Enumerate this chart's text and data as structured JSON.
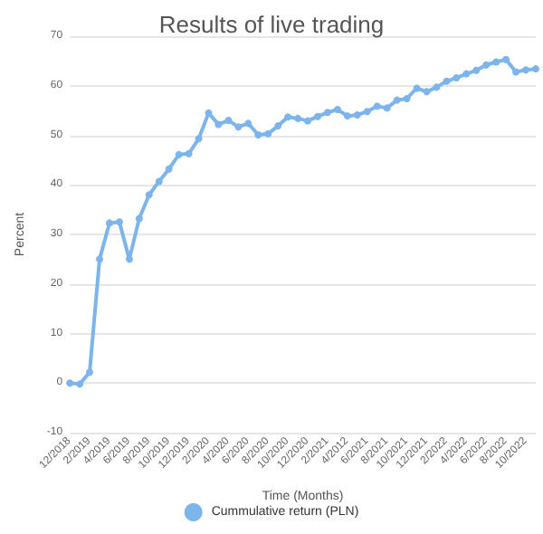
{
  "chart_data": {
    "type": "line",
    "title": "Results of live trading",
    "xlabel": "Time (Months)",
    "ylabel": "Percent",
    "categories": [
      "12/2018",
      null,
      "2/2019",
      null,
      "4/2019",
      null,
      "6/2019",
      null,
      "8/2019",
      null,
      "10/2019",
      null,
      "12/2019",
      null,
      "2/2020",
      null,
      "4/2020",
      null,
      "6/2020",
      null,
      "8/2020",
      null,
      "10/2020",
      null,
      "12/2020",
      null,
      "2/2021",
      null,
      "4/2012",
      null,
      "6/2021",
      null,
      "8/2021",
      null,
      "10/2021",
      null,
      "12/2021",
      null,
      "2/2022",
      null,
      "4/2022",
      null,
      "6/2022",
      null,
      "8/2022",
      null,
      "10/2022",
      null
    ],
    "series": [
      {
        "name": "Cummulative return (PLN)",
        "color": "#7cb5ec",
        "values": [
          0,
          -0.2,
          2.2,
          25,
          32.3,
          32.5,
          25,
          33.2,
          38,
          40.7,
          43.2,
          46.1,
          46.3,
          49.3,
          54.5,
          52.2,
          53,
          51.7,
          52.4,
          50.1,
          50.3,
          51.9,
          53.7,
          53.4,
          52.9,
          53.8,
          54.6,
          55.2,
          53.9,
          54.1,
          54.8,
          55.9,
          55.5,
          57.1,
          57.4,
          59.5,
          58.8,
          59.7,
          60.9,
          61.6,
          62.4,
          63.1,
          64.2,
          64.8,
          65.3,
          62.8,
          63.2,
          63.4
        ]
      }
    ],
    "ylim": [
      -10,
      70
    ],
    "yticks": [
      -10,
      0,
      10,
      20,
      30,
      40,
      50,
      60,
      70
    ],
    "grid": "y",
    "legend": "bottom",
    "marker": "circle",
    "line_style": "solid"
  }
}
